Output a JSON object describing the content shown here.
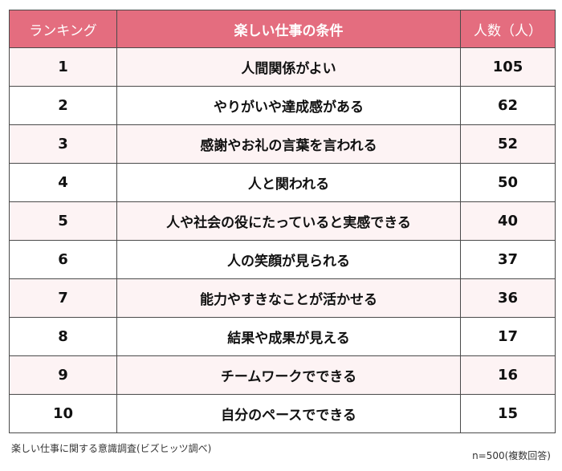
{
  "table": {
    "headers": {
      "rank": "ランキング",
      "condition": "楽しい仕事の条件",
      "count": "人数（人）"
    },
    "rows": [
      {
        "rank": "1",
        "condition": "人間関係がよい",
        "count": "105"
      },
      {
        "rank": "2",
        "condition": "やりがいや達成感がある",
        "count": "62"
      },
      {
        "rank": "3",
        "condition": "感謝やお礼の言葉を言われる",
        "count": "52"
      },
      {
        "rank": "4",
        "condition": "人と関われる",
        "count": "50"
      },
      {
        "rank": "5",
        "condition": "人や社会の役にたっていると実感できる",
        "count": "40"
      },
      {
        "rank": "6",
        "condition": "人の笑顔が見られる",
        "count": "37"
      },
      {
        "rank": "7",
        "condition": "能力やすきなことが活かせる",
        "count": "36"
      },
      {
        "rank": "8",
        "condition": "結果や成果が見える",
        "count": "17"
      },
      {
        "rank": "9",
        "condition": "チームワークでできる",
        "count": "16"
      },
      {
        "rank": "10",
        "condition": "自分のペースでできる",
        "count": "15"
      }
    ]
  },
  "footer": {
    "source": "楽しい仕事に関する意識調査(ビズヒッツ調べ)",
    "sample": "n=500(複数回答)"
  },
  "colors": {
    "header_bg": "#e46d7f",
    "header_text": "#ffffff",
    "row_tint": "#fdf3f4",
    "border": "#4a4a4a"
  }
}
